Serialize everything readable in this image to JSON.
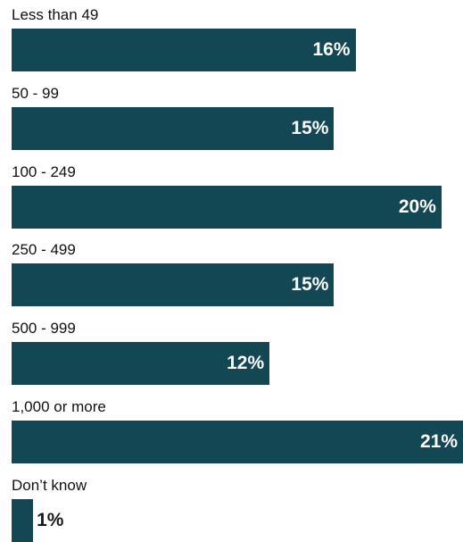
{
  "colors": {
    "bar": "#124753",
    "label_inside": "#ffffff",
    "label_outside": "#1a1a1a",
    "text": "#111111"
  },
  "chart_data": {
    "type": "bar",
    "orientation": "horizontal",
    "categories": [
      "Less than 49",
      "50 - 99",
      "100 - 249",
      "250 - 499",
      "500 - 999",
      "1,000 or more",
      "Don’t know"
    ],
    "values": [
      16,
      15,
      20,
      15,
      12,
      21,
      1
    ],
    "value_labels": [
      "16%",
      "15%",
      "20%",
      "15%",
      "12%",
      "21%",
      "1%"
    ],
    "unit": "%",
    "xlim": [
      0,
      21
    ],
    "grid": false,
    "legend": "none"
  }
}
